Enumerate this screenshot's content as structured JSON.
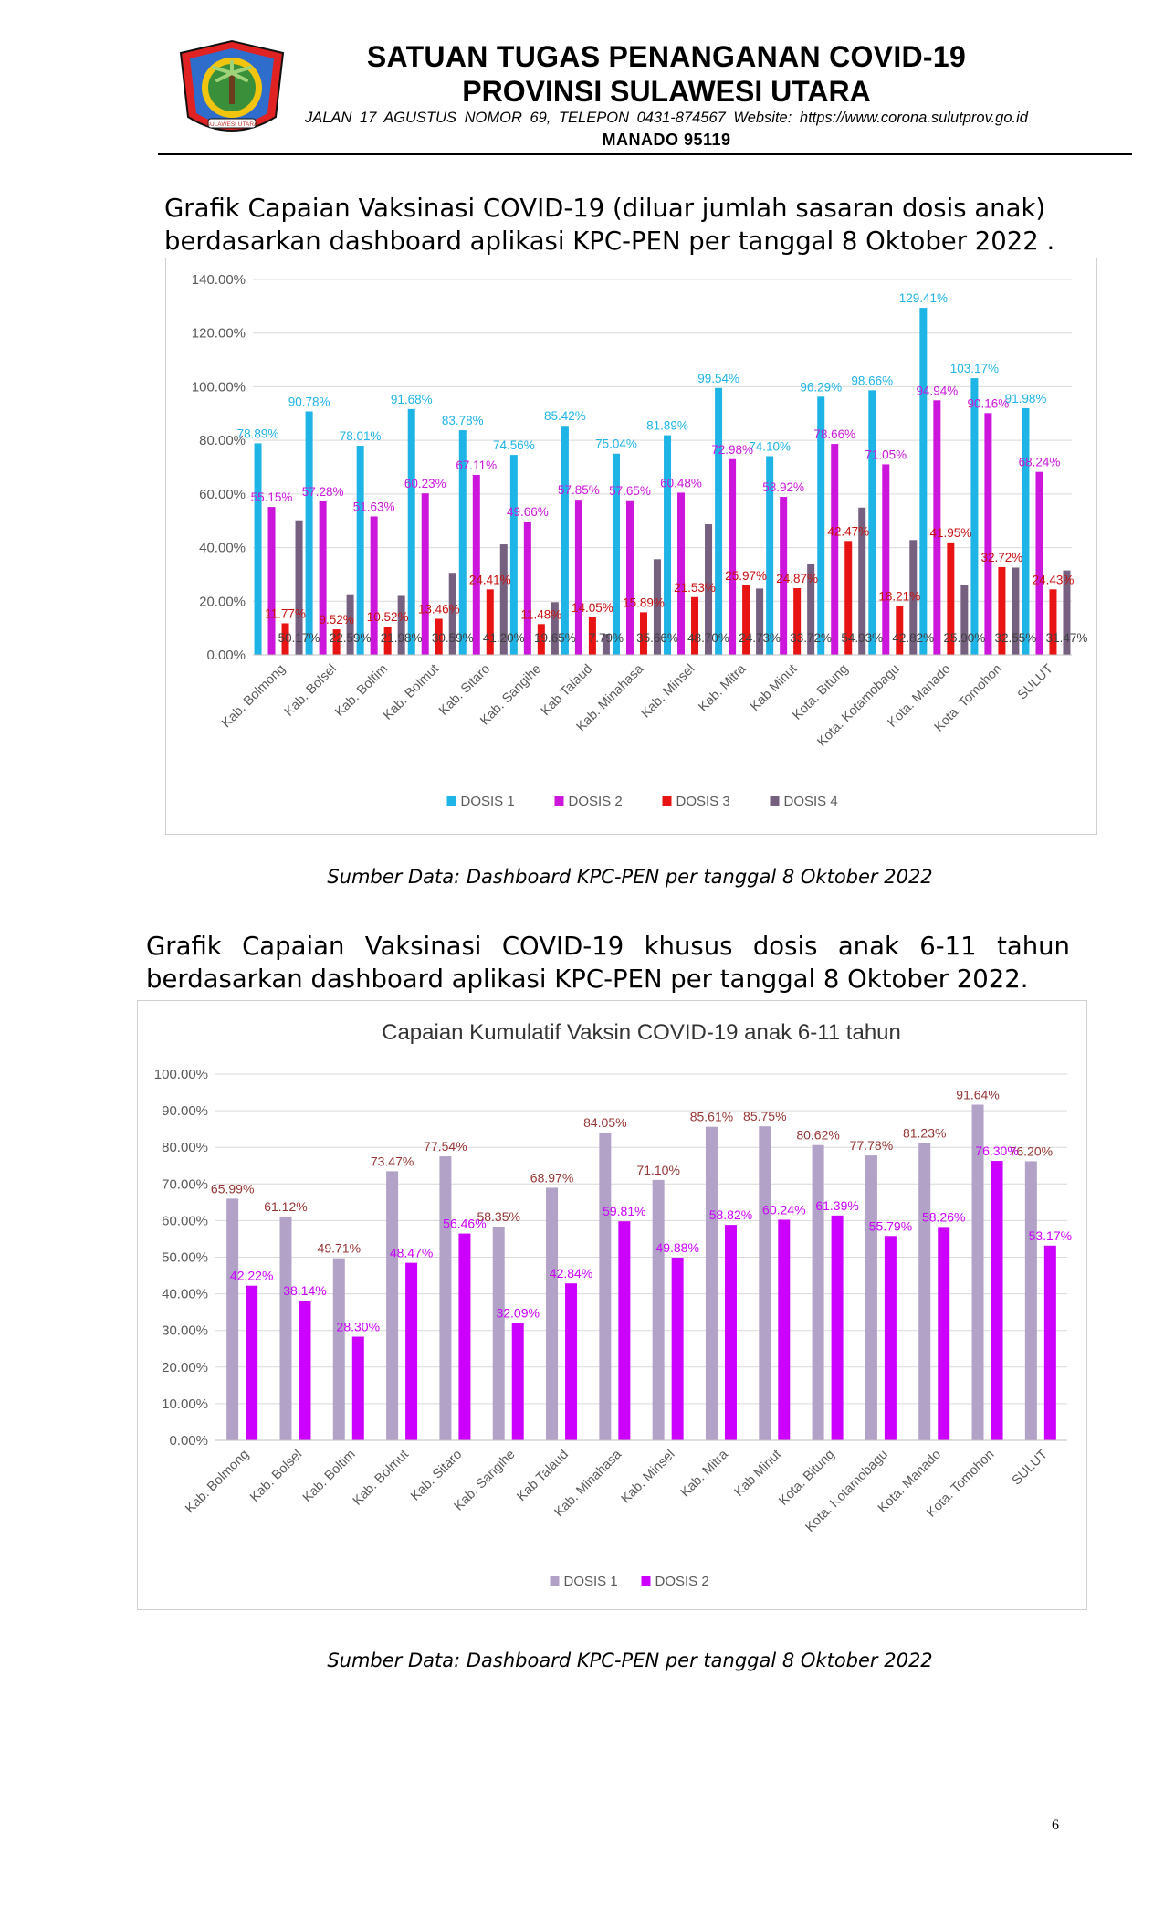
{
  "header": {
    "title_line1": "SATUAN TUGAS PENANGANAN COVID-19",
    "title_line2": "PROVINSI SULAWESI UTARA",
    "address": "JALAN 17 AGUSTUS NOMOR 69, TELEPON 0431-874567 Website: https://www.corona.sulutprov.go.id",
    "city": "MANADO 95119",
    "logo_text": "SULAWESI UTARA"
  },
  "section1": {
    "heading": "Grafik Capaian Vaksinasi COVID-19 (diluar jumlah sasaran dosis anak) berdasarkan dashboard aplikasi KPC-PEN per tanggal 8 Oktober 2022 .",
    "source": "Sumber Data: Dashboard KPC-PEN per tanggal 8 Oktober 2022"
  },
  "section2": {
    "heading": "Grafik Capaian Vaksinasi COVID-19 khusus dosis anak 6-11 tahun berdasarkan dashboard aplikasi KPC-PEN per tanggal 8 Oktober 2022.",
    "source": "Sumber Data: Dashboard KPC-PEN per tanggal 8 Oktober 2022"
  },
  "page_number": "6",
  "chart_data": [
    {
      "type": "bar",
      "title": "",
      "categories": [
        "Kab. Bolmong",
        "Kab. Bolsel",
        "Kab. Boltim",
        "Kab. Bolmut",
        "Kab. Sitaro",
        "Kab. Sangihe",
        "Kab Talaud",
        "Kab. Minahasa",
        "Kab. Minsel",
        "Kab. Mitra",
        "Kab Minut",
        "Kota. Bitung",
        "Kota. Kotamobagu",
        "Kota. Manado",
        "Kota. Tomohon",
        "SULUT"
      ],
      "series": [
        {
          "name": "DOSIS 1",
          "color": "#1fb4e6",
          "label_color": "#1fb4e6",
          "values": [
            78.89,
            90.78,
            78.01,
            91.68,
            83.78,
            74.56,
            85.42,
            75.04,
            81.89,
            99.54,
            74.1,
            96.29,
            98.66,
            129.41,
            103.17,
            91.98
          ],
          "labels": [
            "78.89%",
            "90.78%",
            "78.01%",
            "91.68%",
            "83.78%",
            "74.56%",
            "85.42%",
            "75.04%",
            "81.89%",
            "99.54%",
            "74.10%",
            "96.29%",
            "98.66%",
            "129.41%",
            "103.17%",
            "91.98%"
          ]
        },
        {
          "name": "DOSIS 2",
          "color": "#cc16dc",
          "label_color": "#cc16dc",
          "values": [
            55.15,
            57.28,
            51.63,
            60.23,
            67.11,
            49.66,
            57.85,
            57.65,
            60.48,
            72.98,
            58.92,
            78.66,
            71.05,
            94.94,
            90.16,
            68.24
          ],
          "labels": [
            "55.15%",
            "57.28%",
            "51.63%",
            "60.23%",
            "67.11%",
            "49.66%",
            "57.85%",
            "57.65%",
            "60.48%",
            "72.98%",
            "58.92%",
            "78.66%",
            "71.05%",
            "94.94%",
            "90.16%",
            "68.24%"
          ]
        },
        {
          "name": "DOSIS 3",
          "color": "#e81414",
          "label_color": "#c81010",
          "values": [
            11.77,
            9.52,
            10.52,
            13.46,
            24.41,
            11.48,
            14.05,
            15.89,
            21.53,
            25.97,
            24.87,
            42.47,
            18.21,
            41.95,
            32.72,
            24.43
          ],
          "labels": [
            "11.77%",
            "9.52%",
            "10.52%",
            "13.46%",
            "24.41%",
            "11.48%",
            "14.05%",
            "15.89%",
            "21.53%",
            "25.97%",
            "24.87%",
            "42.47%",
            "18.21%",
            "41.95%",
            "32.72%",
            "24.43%"
          ]
        },
        {
          "name": "DOSIS 4",
          "color": "#756080",
          "label_color": "#404040",
          "values": [
            50.17,
            22.59,
            21.98,
            30.59,
            41.2,
            19.65,
            7.79,
            35.66,
            48.7,
            24.73,
            33.72,
            54.93,
            42.82,
            25.9,
            32.55,
            31.47
          ],
          "labels": [
            "50.17%",
            "22.59%",
            "21.98%",
            "30.59%",
            "41.20%",
            "19.65%",
            "7.79%",
            "35.66%",
            "48.70%",
            "24.73%",
            "33.72%",
            "54.93%",
            "42.82%",
            "25.90%",
            "32.55%",
            "31.47%"
          ]
        }
      ],
      "yaxis": {
        "min": 0,
        "max": 140,
        "step": 20,
        "format": "%"
      },
      "ytick_labels": [
        "0.00%",
        "20.00%",
        "40.00%",
        "60.00%",
        "80.00%",
        "100.00%",
        "120.00%",
        "140.00%"
      ],
      "grid": true,
      "legend": "bottom"
    },
    {
      "type": "bar",
      "title": "Capaian Kumulatif Vaksin COVID-19 anak 6-11 tahun",
      "categories": [
        "Kab. Bolmong",
        "Kab. Bolsel",
        "Kab. Boltim",
        "Kab. Bolmut",
        "Kab. Sitaro",
        "Kab. Sangihe",
        "Kab Talaud",
        "Kab. Minahasa",
        "Kab. Minsel",
        "Kab. Mitra",
        "Kab Minut",
        "Kota. Bitung",
        "Kota. Kotamobagu",
        "Kota. Manado",
        "Kota. Tomohon",
        "SULUT"
      ],
      "series": [
        {
          "name": "DOSIS 1",
          "color": "#b3a2c7",
          "label_color": "#943634",
          "values": [
            65.99,
            61.12,
            49.71,
            73.47,
            77.54,
            58.35,
            68.97,
            84.05,
            71.1,
            85.61,
            85.75,
            80.62,
            77.78,
            81.23,
            91.64,
            76.2
          ],
          "labels": [
            "65.99%",
            "61.12%",
            "49.71%",
            "73.47%",
            "77.54%",
            "58.35%",
            "68.97%",
            "84.05%",
            "71.10%",
            "85.61%",
            "85.75%",
            "80.62%",
            "77.78%",
            "81.23%",
            "91.64%",
            "76.20%"
          ]
        },
        {
          "name": "DOSIS 2",
          "color": "#cc00ff",
          "label_color": "#cc00ff",
          "values": [
            42.22,
            38.14,
            28.3,
            48.47,
            56.46,
            32.09,
            42.84,
            59.81,
            49.88,
            58.82,
            60.24,
            61.39,
            55.79,
            58.26,
            76.3,
            53.17
          ],
          "labels": [
            "42.22%",
            "38.14%",
            "28.30%",
            "48.47%",
            "56.46%",
            "32.09%",
            "42.84%",
            "59.81%",
            "49.88%",
            "58.82%",
            "60.24%",
            "61.39%",
            "55.79%",
            "58.26%",
            "76.30%",
            "53.17%"
          ]
        }
      ],
      "yaxis": {
        "min": 0,
        "max": 100,
        "step": 10,
        "format": "%"
      },
      "ytick_labels": [
        "0.00%",
        "10.00%",
        "20.00%",
        "30.00%",
        "40.00%",
        "50.00%",
        "60.00%",
        "70.00%",
        "80.00%",
        "90.00%",
        "100.00%"
      ],
      "grid": true,
      "legend": "bottom"
    }
  ]
}
